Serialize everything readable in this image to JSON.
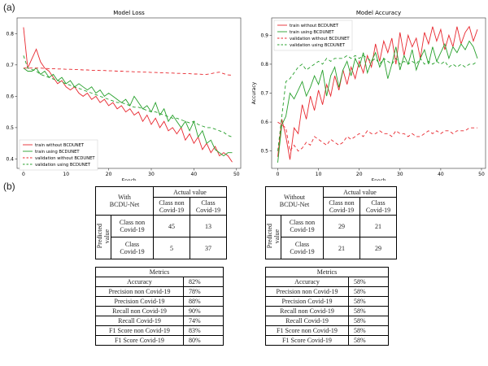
{
  "panel_labels": {
    "a": "(a)",
    "b": "(b)"
  },
  "chart_data": [
    {
      "type": "line",
      "title": "Model Loss",
      "xlabel": "Epoch",
      "ylabel": "",
      "xlim": [
        -1.5,
        51
      ],
      "ylim": [
        0.37,
        0.85
      ],
      "xticks": [
        0,
        10,
        20,
        30,
        40,
        50
      ],
      "yticks": [
        0.4,
        0.5,
        0.6,
        0.7,
        0.8
      ],
      "legend_position": "lower-left",
      "series": [
        {
          "name": "train without BCDUNET",
          "color": "#e8272e",
          "dash": "",
          "y": [
            0.82,
            0.69,
            0.72,
            0.75,
            0.71,
            0.69,
            0.68,
            0.66,
            0.64,
            0.65,
            0.63,
            0.62,
            0.63,
            0.61,
            0.6,
            0.61,
            0.59,
            0.6,
            0.58,
            0.59,
            0.57,
            0.58,
            0.56,
            0.57,
            0.55,
            0.56,
            0.54,
            0.55,
            0.52,
            0.54,
            0.51,
            0.53,
            0.5,
            0.52,
            0.49,
            0.5,
            0.48,
            0.5,
            0.46,
            0.48,
            0.45,
            0.47,
            0.43,
            0.45,
            0.42,
            0.44,
            0.41,
            0.42,
            0.41,
            0.39
          ]
        },
        {
          "name": "train using BCDUNET",
          "color": "#27a02c",
          "dash": "",
          "y": [
            0.69,
            0.68,
            0.68,
            0.69,
            0.67,
            0.68,
            0.66,
            0.67,
            0.65,
            0.66,
            0.64,
            0.65,
            0.63,
            0.64,
            0.63,
            0.62,
            0.63,
            0.61,
            0.62,
            0.6,
            0.61,
            0.6,
            0.59,
            0.58,
            0.59,
            0.57,
            0.6,
            0.58,
            0.56,
            0.57,
            0.55,
            0.58,
            0.54,
            0.56,
            0.52,
            0.54,
            0.52,
            0.5,
            0.52,
            0.49,
            0.52,
            0.47,
            0.49,
            0.45,
            0.46,
            0.43,
            0.42,
            0.41,
            0.42,
            0.42
          ]
        },
        {
          "name": "validation without BCDUNET",
          "color": "#e8272e",
          "dash": "4,3",
          "y": [
            0.69,
            0.69,
            0.69,
            0.69,
            0.69,
            0.689,
            0.688,
            0.688,
            0.687,
            0.687,
            0.686,
            0.686,
            0.685,
            0.685,
            0.684,
            0.684,
            0.683,
            0.683,
            0.682,
            0.682,
            0.681,
            0.681,
            0.68,
            0.68,
            0.679,
            0.679,
            0.678,
            0.678,
            0.677,
            0.677,
            0.676,
            0.676,
            0.675,
            0.675,
            0.674,
            0.674,
            0.673,
            0.673,
            0.672,
            0.672,
            0.671,
            0.671,
            0.67,
            0.67,
            0.672,
            0.675,
            0.677,
            0.672,
            0.668,
            0.667
          ]
        },
        {
          "name": "validation using BCDUNET",
          "color": "#27a02c",
          "dash": "4,3",
          "y": [
            0.73,
            0.69,
            0.685,
            0.68,
            0.67,
            0.665,
            0.66,
            0.655,
            0.65,
            0.645,
            0.64,
            0.635,
            0.63,
            0.625,
            0.62,
            0.615,
            0.61,
            0.605,
            0.6,
            0.595,
            0.59,
            0.585,
            0.58,
            0.58,
            0.575,
            0.57,
            0.565,
            0.565,
            0.56,
            0.555,
            0.55,
            0.55,
            0.545,
            0.54,
            0.535,
            0.53,
            0.53,
            0.525,
            0.52,
            0.515,
            0.52,
            0.51,
            0.505,
            0.5,
            0.5,
            0.495,
            0.49,
            0.485,
            0.475,
            0.47
          ]
        }
      ]
    },
    {
      "type": "line",
      "title": "Model Accuracy",
      "xlabel": "Epoch",
      "ylabel": "Accuracy",
      "xlim": [
        -1.5,
        51
      ],
      "ylim": [
        0.44,
        0.96
      ],
      "xticks": [
        0,
        10,
        20,
        30,
        40,
        50
      ],
      "yticks": [
        0.5,
        0.6,
        0.7,
        0.8,
        0.9
      ],
      "legend_position": "upper-left",
      "series": [
        {
          "name": "train without BCDUNET",
          "color": "#e8272e",
          "dash": "",
          "y": [
            0.48,
            0.61,
            0.55,
            0.47,
            0.58,
            0.56,
            0.66,
            0.61,
            0.69,
            0.64,
            0.71,
            0.66,
            0.73,
            0.69,
            0.76,
            0.71,
            0.78,
            0.73,
            0.79,
            0.75,
            0.81,
            0.77,
            0.83,
            0.79,
            0.87,
            0.81,
            0.88,
            0.84,
            0.89,
            0.8,
            0.91,
            0.83,
            0.9,
            0.86,
            0.89,
            0.82,
            0.91,
            0.87,
            0.93,
            0.88,
            0.92,
            0.85,
            0.9,
            0.86,
            0.93,
            0.87,
            0.91,
            0.93,
            0.88,
            0.92
          ]
        },
        {
          "name": "train using BCDUNET",
          "color": "#27a02c",
          "dash": "",
          "y": [
            0.46,
            0.59,
            0.62,
            0.7,
            0.68,
            0.71,
            0.74,
            0.69,
            0.72,
            0.76,
            0.73,
            0.78,
            0.69,
            0.76,
            0.79,
            0.72,
            0.78,
            0.81,
            0.76,
            0.82,
            0.79,
            0.84,
            0.77,
            0.81,
            0.84,
            0.79,
            0.82,
            0.75,
            0.8,
            0.86,
            0.78,
            0.83,
            0.8,
            0.85,
            0.78,
            0.82,
            0.85,
            0.8,
            0.86,
            0.81,
            0.84,
            0.87,
            0.82,
            0.86,
            0.84,
            0.87,
            0.85,
            0.88,
            0.86,
            0.82
          ]
        },
        {
          "name": "validation without BCDUNET",
          "color": "#e8272e",
          "dash": "4,3",
          "y": [
            0.6,
            0.59,
            0.58,
            0.5,
            0.52,
            0.5,
            0.51,
            0.53,
            0.52,
            0.55,
            0.54,
            0.53,
            0.52,
            0.54,
            0.53,
            0.52,
            0.53,
            0.55,
            0.54,
            0.55,
            0.56,
            0.55,
            0.57,
            0.56,
            0.56,
            0.57,
            0.56,
            0.56,
            0.55,
            0.57,
            0.56,
            0.56,
            0.55,
            0.56,
            0.55,
            0.55,
            0.56,
            0.57,
            0.56,
            0.57,
            0.56,
            0.57,
            0.57,
            0.56,
            0.57,
            0.57,
            0.57,
            0.58,
            0.58,
            0.58
          ]
        },
        {
          "name": "validation using BCDUNET",
          "color": "#27a02c",
          "dash": "4,3",
          "y": [
            0.5,
            0.62,
            0.74,
            0.75,
            0.77,
            0.79,
            0.8,
            0.78,
            0.79,
            0.8,
            0.81,
            0.8,
            0.82,
            0.81,
            0.82,
            0.82,
            0.82,
            0.83,
            0.82,
            0.83,
            0.82,
            0.83,
            0.82,
            0.81,
            0.82,
            0.8,
            0.82,
            0.81,
            0.8,
            0.82,
            0.8,
            0.81,
            0.8,
            0.81,
            0.8,
            0.82,
            0.8,
            0.81,
            0.8,
            0.81,
            0.8,
            0.81,
            0.79,
            0.8,
            0.79,
            0.8,
            0.79,
            0.8,
            0.8,
            0.81
          ]
        }
      ]
    },
    {
      "type": "table",
      "corner": [
        "With",
        "BCDU-Net"
      ],
      "actual_header": "Actual value",
      "predicted_header": "Predicted value",
      "col_headers": [
        [
          "Class non",
          "Covid-19"
        ],
        [
          "Class",
          "Covid-19"
        ]
      ],
      "row_headers": [
        [
          "Class non",
          "Covid-19"
        ],
        [
          "Class",
          "Covid-19"
        ]
      ],
      "cells": [
        [
          "45",
          "13"
        ],
        [
          "5",
          "37"
        ]
      ],
      "metrics_title": "Metrics",
      "metrics": [
        {
          "name": "Accuracy",
          "value": "82%"
        },
        {
          "name": "Precision non Covid-19",
          "value": "78%"
        },
        {
          "name": "Precision Covid-19",
          "value": "88%"
        },
        {
          "name": "Recall non Covid-19",
          "value": "90%"
        },
        {
          "name": "Recall Covid-19",
          "value": "74%"
        },
        {
          "name": "F1 Score non Covid-19",
          "value": "83%"
        },
        {
          "name": "F1 Score Covid-19",
          "value": "80%"
        }
      ]
    },
    {
      "type": "table",
      "corner": [
        "Without",
        "BCDU-Net"
      ],
      "actual_header": "Actual value",
      "predicted_header": "Predicted value",
      "col_headers": [
        [
          "Class non",
          "Covid-19"
        ],
        [
          "Class",
          "Covid-19"
        ]
      ],
      "row_headers": [
        [
          "Class non",
          "Covid-19"
        ],
        [
          "Class",
          "Covid-19"
        ]
      ],
      "cells": [
        [
          "29",
          "21"
        ],
        [
          "21",
          "29"
        ]
      ],
      "metrics_title": "Metrics",
      "metrics": [
        {
          "name": "Accuracy",
          "value": "58%"
        },
        {
          "name": "Precision non Covid-19",
          "value": "58%"
        },
        {
          "name": "Precision Covid-19",
          "value": "58%"
        },
        {
          "name": "Recall non Covid-19",
          "value": "58%"
        },
        {
          "name": "Recall Covid-19",
          "value": "58%"
        },
        {
          "name": "F1 Score non Covid-19",
          "value": "58%"
        },
        {
          "name": "F1 Score Covid-19",
          "value": "58%"
        }
      ]
    }
  ]
}
